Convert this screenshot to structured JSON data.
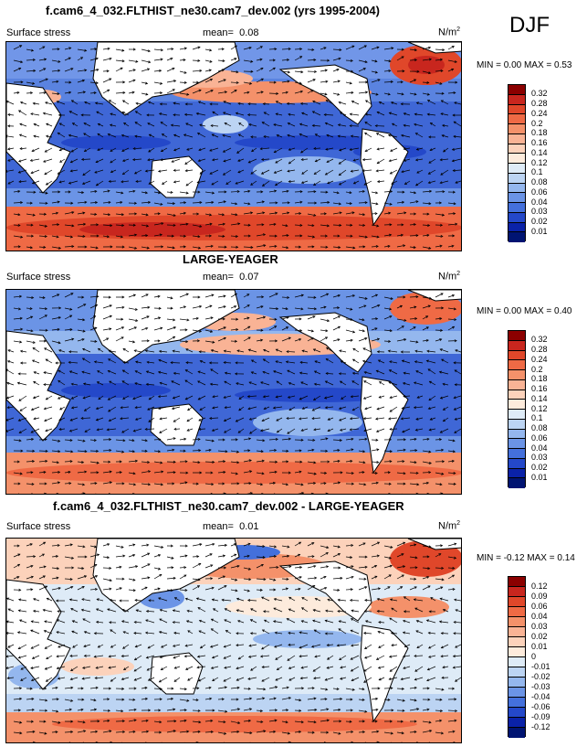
{
  "season": "DJF",
  "panels": [
    {
      "title": "f.cam6_4_032.FLTHIST_ne30.cam7_dev.002 (yrs 1995-2004)",
      "variable": "Surface stress",
      "mean_label": "mean=",
      "mean": "0.08",
      "units": "N/m",
      "units_sup": "2",
      "minmax": "MIN =  0.00 MAX =  0.53",
      "colorbar_labels": [
        "0.32",
        "0.28",
        "0.24",
        "0.2",
        "0.18",
        "0.16",
        "0.14",
        "0.12",
        "0.1",
        "0.08",
        "0.06",
        "0.04",
        "0.03",
        "0.02",
        "0.01"
      ],
      "colorbar_colors": [
        "#8b0000",
        "#c8261e",
        "#e0472a",
        "#ef6a45",
        "#f4916a",
        "#f9b395",
        "#fcd2bb",
        "#fdebdc",
        "#deebf7",
        "#bcd4f3",
        "#94b7ee",
        "#6b94e6",
        "#4470dc",
        "#2448c9",
        "#0a22a8",
        "#001472"
      ]
    },
    {
      "title": "LARGE-YEAGER",
      "variable": "Surface stress",
      "mean_label": "mean=",
      "mean": "0.07",
      "units": "N/m",
      "units_sup": "2",
      "minmax": "MIN =  0.00 MAX =  0.40",
      "colorbar_labels": [
        "0.32",
        "0.28",
        "0.24",
        "0.2",
        "0.18",
        "0.16",
        "0.14",
        "0.12",
        "0.1",
        "0.08",
        "0.06",
        "0.04",
        "0.03",
        "0.02",
        "0.01"
      ],
      "colorbar_colors": [
        "#8b0000",
        "#c8261e",
        "#e0472a",
        "#ef6a45",
        "#f4916a",
        "#f9b395",
        "#fcd2bb",
        "#fdebdc",
        "#deebf7",
        "#bcd4f3",
        "#94b7ee",
        "#6b94e6",
        "#4470dc",
        "#2448c9",
        "#0a22a8",
        "#001472"
      ]
    },
    {
      "title": "f.cam6_4_032.FLTHIST_ne30.cam7_dev.002 - LARGE-YEAGER",
      "variable": "Surface stress",
      "mean_label": "mean=",
      "mean": "0.01",
      "units": "N/m",
      "units_sup": "2",
      "minmax": "MIN = -0.12 MAX =  0.14",
      "colorbar_labels": [
        "0.12",
        "0.09",
        "0.06",
        "0.04",
        "0.03",
        "0.02",
        "0.01",
        "0",
        "-0.01",
        "-0.02",
        "-0.03",
        "-0.04",
        "-0.06",
        "-0.09",
        "-0.12"
      ],
      "colorbar_colors": [
        "#8b0000",
        "#c8261e",
        "#e0472a",
        "#ef6a45",
        "#f4916a",
        "#f9b395",
        "#fcd2bb",
        "#fdebdc",
        "#deebf7",
        "#bcd4f3",
        "#94b7ee",
        "#6b94e6",
        "#4470dc",
        "#2448c9",
        "#0a22a8",
        "#001472"
      ]
    }
  ]
}
